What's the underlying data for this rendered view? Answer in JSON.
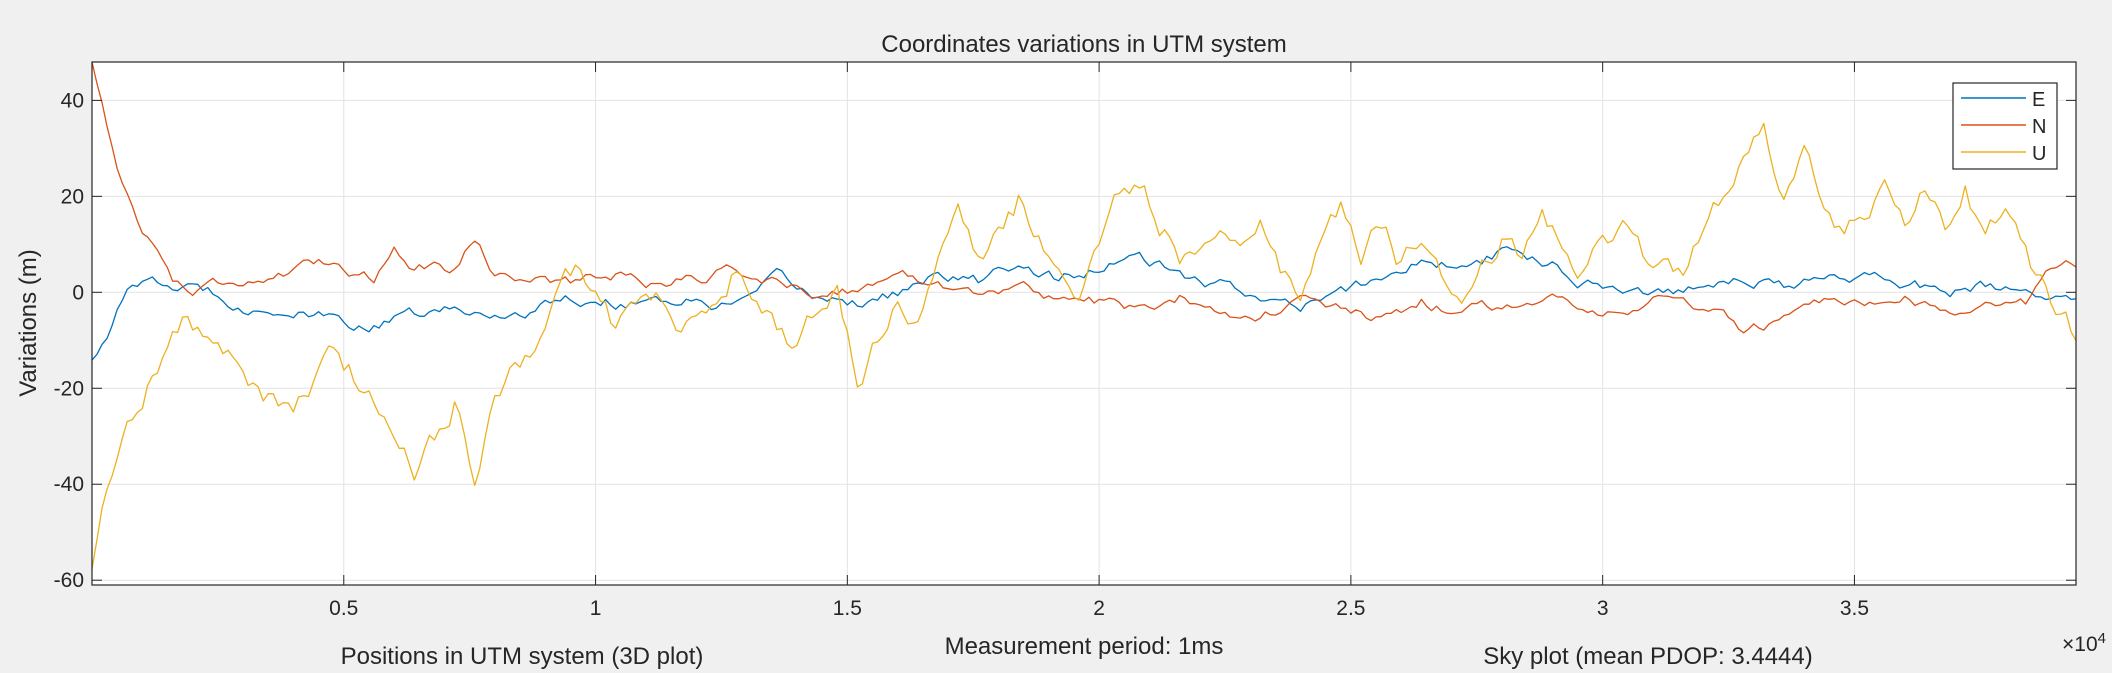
{
  "chart_data": {
    "type": "line",
    "title": "Coordinates variations in UTM system",
    "xlabel": "Measurement period: 1ms",
    "ylabel": "Variations (m)",
    "x_exponent_label": "×10",
    "x_exponent_power": "4",
    "xlim": [
      0,
      39400
    ],
    "ylim": [
      -61,
      48
    ],
    "grid": true,
    "legend_position": "top-right",
    "xticks": [
      5000,
      10000,
      15000,
      20000,
      25000,
      30000,
      35000
    ],
    "xtick_labels": [
      "0.5",
      "1",
      "1.5",
      "2",
      "2.5",
      "3",
      "3.5"
    ],
    "yticks": [
      40,
      20,
      0,
      -20,
      -40,
      -60
    ],
    "ytick_labels": [
      "40",
      "20",
      "0",
      "-20",
      "-40",
      "-60"
    ],
    "sample_step": 100,
    "series": [
      {
        "name": "E",
        "color": "#0072BD",
        "x": [
          0,
          800,
          1600,
          2400,
          3200,
          4000,
          4800,
          5600,
          6400,
          7200,
          8000,
          8800,
          9600,
          10400,
          11200,
          12000,
          12800,
          13600,
          14400,
          15200,
          16000,
          16800,
          17600,
          18400,
          19200,
          20000,
          20800,
          21600,
          22400,
          23200,
          24000,
          24800,
          25600,
          26400,
          27200,
          28000,
          28800,
          29600,
          30400,
          31200,
          32000,
          32800,
          33600,
          34400,
          35200,
          36000,
          36800,
          37600,
          38400,
          39400
        ],
        "y": [
          -14,
          2,
          1,
          0,
          -3,
          -4,
          -6,
          -7,
          -5,
          -4,
          -5,
          -3,
          -1,
          -2,
          -1,
          -2,
          -3,
          2,
          -1,
          -2,
          0,
          3,
          2,
          6,
          3,
          5,
          7,
          3,
          1,
          0,
          -4,
          0,
          3,
          7,
          5,
          8,
          7,
          3,
          1,
          0,
          2,
          4,
          1,
          3,
          4,
          2,
          0,
          1,
          -1,
          -2
        ]
      },
      {
        "name": "N",
        "color": "#D95319",
        "x": [
          0,
          300,
          600,
          900,
          1200,
          1600,
          2000,
          2400,
          3200,
          4000,
          4800,
          5600,
          6000,
          6400,
          7200,
          7600,
          8000,
          8800,
          9600,
          10400,
          11200,
          12000,
          12800,
          13600,
          14400,
          15200,
          16000,
          16800,
          17600,
          18400,
          19200,
          20000,
          20800,
          21600,
          22400,
          23200,
          24000,
          24800,
          25600,
          26400,
          27200,
          28000,
          28800,
          29600,
          30400,
          31200,
          32000,
          32800,
          33600,
          34400,
          35200,
          36000,
          36800,
          37600,
          38400,
          39000,
          39400
        ],
        "y": [
          48,
          35,
          23,
          15,
          10,
          3,
          0,
          2,
          3,
          4,
          6,
          3,
          10,
          6,
          5,
          12,
          4,
          3,
          2,
          4,
          2,
          3,
          5,
          2,
          0,
          1,
          3,
          2,
          0,
          1,
          -1,
          -2,
          -4,
          -1,
          -3,
          -5,
          -2,
          -4,
          -6,
          -2,
          -4,
          -3,
          -1,
          -2,
          -4,
          -1,
          -3,
          -8,
          -6,
          -3,
          -4,
          -2,
          -5,
          -1,
          -3,
          5,
          6
        ]
      },
      {
        "name": "U",
        "color": "#EDB120",
        "x": [
          0,
          300,
          600,
          1000,
          1400,
          1800,
          2400,
          3000,
          3600,
          4000,
          4400,
          4800,
          5200,
          5600,
          6000,
          6400,
          6800,
          7200,
          7600,
          8000,
          8400,
          8800,
          9200,
          9600,
          10000,
          10400,
          10800,
          11200,
          11600,
          12000,
          12400,
          12800,
          13200,
          13600,
          14000,
          14400,
          14800,
          15200,
          15600,
          16000,
          16400,
          16800,
          17200,
          17600,
          18000,
          18400,
          18800,
          19200,
          19600,
          20000,
          20400,
          20800,
          21200,
          21600,
          22000,
          22400,
          22800,
          23200,
          23600,
          24000,
          24400,
          24800,
          25200,
          25600,
          26000,
          26400,
          26800,
          27200,
          27600,
          28000,
          28400,
          28800,
          29200,
          29600,
          30000,
          30400,
          30800,
          31200,
          31600,
          32000,
          32400,
          32800,
          33200,
          33600,
          34000,
          34400,
          34800,
          35200,
          35600,
          36000,
          36400,
          36800,
          37200,
          37600,
          38000,
          38400,
          38800,
          39400
        ],
        "y": [
          -58,
          -42,
          -28,
          -20,
          -12,
          -6,
          -10,
          -18,
          -22,
          -28,
          -20,
          -14,
          -18,
          -24,
          -28,
          -36,
          -30,
          -22,
          -38,
          -24,
          -18,
          -10,
          -2,
          4,
          -2,
          -8,
          -4,
          0,
          -10,
          -6,
          -2,
          5,
          0,
          -8,
          -12,
          -4,
          0,
          -20,
          -10,
          0,
          -4,
          6,
          14,
          4,
          10,
          18,
          12,
          4,
          0,
          8,
          18,
          24,
          15,
          8,
          10,
          14,
          10,
          18,
          6,
          2,
          10,
          16,
          8,
          14,
          6,
          12,
          4,
          -2,
          6,
          12,
          8,
          14,
          10,
          6,
          12,
          14,
          8,
          10,
          6,
          12,
          20,
          26,
          36,
          22,
          28,
          18,
          12,
          16,
          20,
          12,
          22,
          14,
          24,
          10,
          16,
          8,
          0,
          -10
        ]
      }
    ]
  },
  "below_panels": {
    "left_title": "Positions in UTM system (3D plot)",
    "right_title": "Sky plot (mean PDOP: 3.4444)"
  }
}
